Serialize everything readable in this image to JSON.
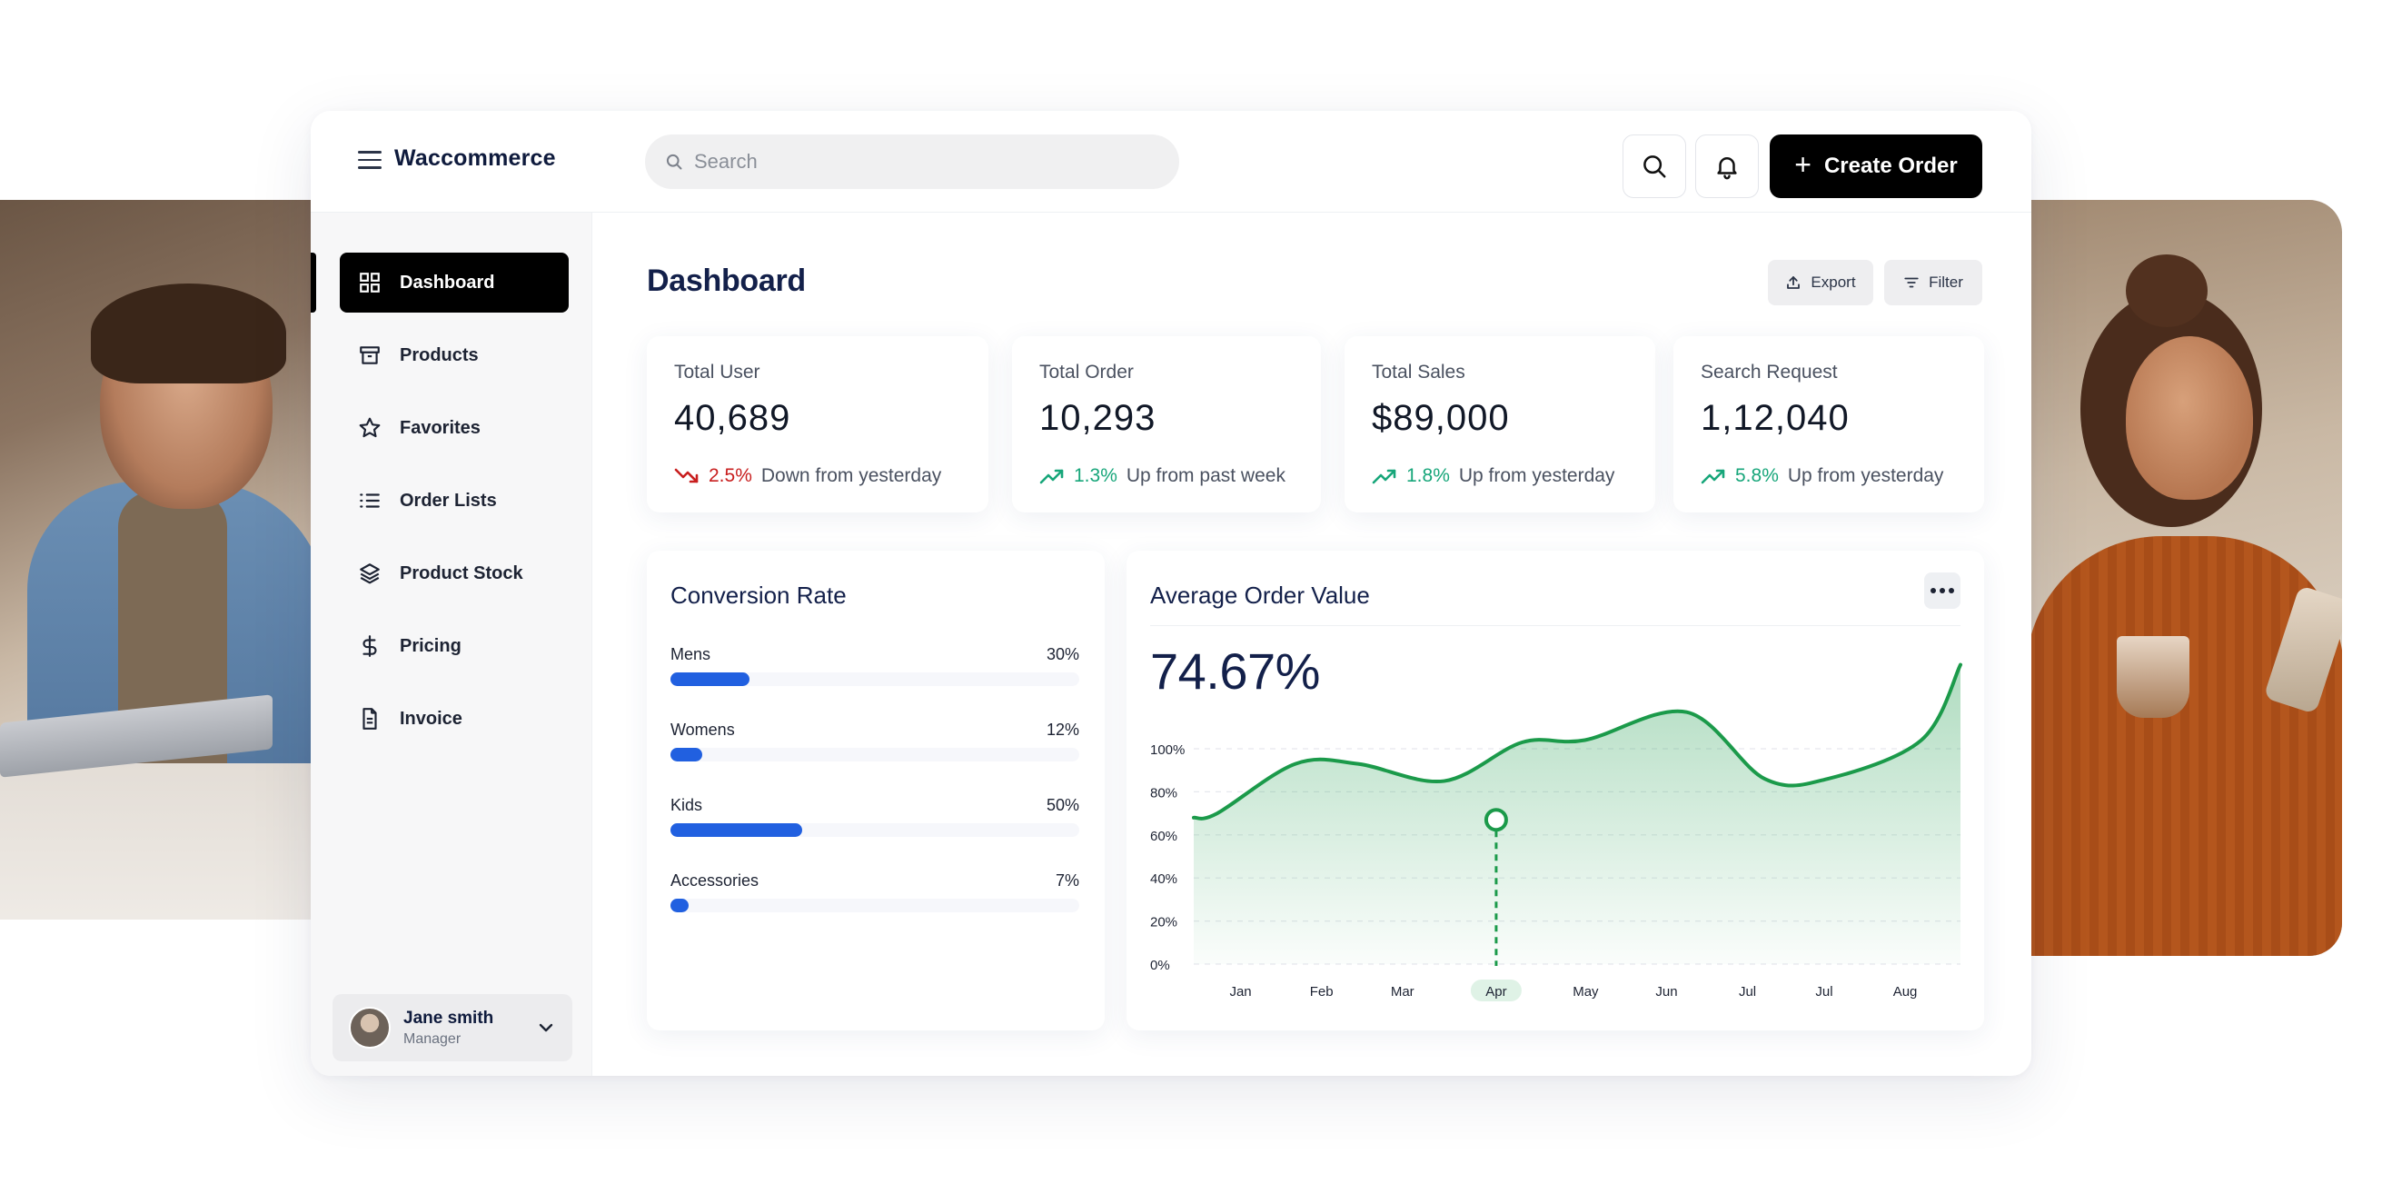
{
  "app": {
    "brand": "Waccommerce",
    "search": {
      "placeholder": "Search",
      "value": ""
    },
    "create_label": "Create Order"
  },
  "sidebar": {
    "items": [
      {
        "label": "Dashboard",
        "icon": "grid-icon",
        "active": true
      },
      {
        "label": "Products",
        "icon": "archive-icon"
      },
      {
        "label": "Favorites",
        "icon": "star-icon"
      },
      {
        "label": "Order Lists",
        "icon": "list-icon"
      },
      {
        "label": "Product Stock",
        "icon": "layers-icon"
      },
      {
        "label": "Pricing",
        "icon": "dollar-icon"
      },
      {
        "label": "Invoice",
        "icon": "file-icon"
      }
    ],
    "user": {
      "name": "Jane smith",
      "role": "Manager"
    }
  },
  "main": {
    "title": "Dashboard",
    "export_label": "Export",
    "filter_label": "Filter",
    "stats": [
      {
        "label": "Total User",
        "value": "40,689",
        "change": "2.5%",
        "direction": "down",
        "note": "Down from yesterday"
      },
      {
        "label": "Total Order",
        "value": "10,293",
        "change": "1.3%",
        "direction": "up",
        "note": "Up from past week"
      },
      {
        "label": "Total Sales",
        "value": "$89,000",
        "change": "1.8%",
        "direction": "up",
        "note": "Up from yesterday"
      },
      {
        "label": "Search Request",
        "value": "1,12,040",
        "change": "5.8%",
        "direction": "up",
        "note": "Up from yesterday"
      }
    ],
    "conversion": {
      "title": "Conversion Rate",
      "rows": [
        {
          "name": "Mens",
          "percent_label": "30%",
          "value": 30
        },
        {
          "name": "Womens",
          "percent_label": "12%",
          "value": 12
        },
        {
          "name": "Kids",
          "percent_label": "50%",
          "value": 50
        },
        {
          "name": "Accessories",
          "percent_label": "7%",
          "value": 7
        }
      ]
    },
    "aov": {
      "title": "Average Order Value",
      "value": "74.67%"
    }
  },
  "chart_data": {
    "type": "area",
    "title": "Average Order Value",
    "x": [
      "Jan",
      "Feb",
      "Mar",
      "Apr",
      "May",
      "Jun",
      "Jul",
      "Jul",
      "Aug"
    ],
    "highlighted_x": "Apr",
    "y_ticks": [
      "100%",
      "80%",
      "60%",
      "40%",
      "20%",
      "0%"
    ],
    "ylim": [
      0,
      100
    ],
    "points": [
      {
        "x": 0.0,
        "y": 68
      },
      {
        "x": 0.3,
        "y": 70
      },
      {
        "x": 1.3,
        "y": 93
      },
      {
        "x": 2.1,
        "y": 93
      },
      {
        "x": 3.2,
        "y": 85
      },
      {
        "x": 4.2,
        "y": 103
      },
      {
        "x": 5.0,
        "y": 104
      },
      {
        "x": 6.3,
        "y": 117
      },
      {
        "x": 7.3,
        "y": 86
      },
      {
        "x": 8.1,
        "y": 86
      },
      {
        "x": 9.3,
        "y": 104
      },
      {
        "x": 9.8,
        "y": 139
      }
    ],
    "marker": {
      "x": 4.0,
      "y": 67
    },
    "grid": true,
    "color": "#1b9a4a"
  },
  "colors": {
    "accent": "#000000",
    "bar": "#2160e0",
    "up": "#17a67a",
    "down": "#c81e1e",
    "line": "#1b9a4a"
  }
}
